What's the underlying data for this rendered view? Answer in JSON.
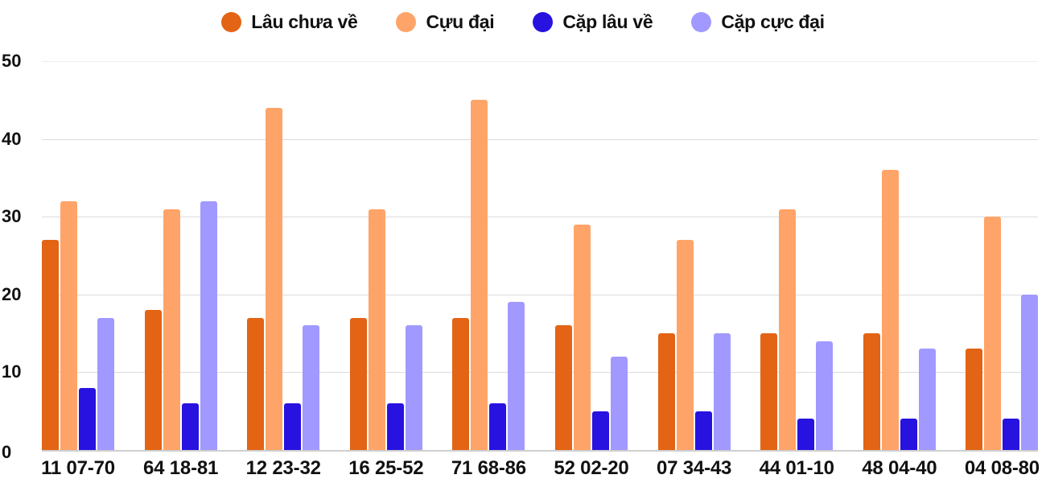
{
  "legend": [
    {
      "label": "Lâu chưa về",
      "color": "#E26414"
    },
    {
      "label": "Cựu đại",
      "color": "#FFA468"
    },
    {
      "label": "Cặp lâu về",
      "color": "#2712E0"
    },
    {
      "label": "Cặp cực đại",
      "color": "#A199FF"
    }
  ],
  "y_axis": {
    "ticks": [
      "0",
      "10",
      "20",
      "30",
      "40",
      "50"
    ]
  },
  "x_axis": {
    "ticks": [
      "11 07-70",
      "64 18-81",
      "12 23-32",
      "16 25-52",
      "71 68-86",
      "52 02-20",
      "07 34-43",
      "44 01-10",
      "48 04-40",
      "04 08-80"
    ]
  },
  "chart_data": {
    "type": "bar",
    "title": "",
    "xlabel": "",
    "ylabel": "",
    "ylim": [
      0,
      50
    ],
    "grid": true,
    "legend_position": "top",
    "categories": [
      "11 07-70",
      "64 18-81",
      "12 23-32",
      "16 25-52",
      "71 68-86",
      "52 02-20",
      "07 34-43",
      "44 01-10",
      "48 04-40",
      "04 08-80"
    ],
    "series": [
      {
        "name": "Lâu chưa về",
        "color": "#E26414",
        "values": [
          27,
          18,
          17,
          17,
          17,
          16,
          15,
          15,
          15,
          13
        ]
      },
      {
        "name": "Cựu đại",
        "color": "#FFA468",
        "values": [
          32,
          31,
          44,
          31,
          45,
          29,
          27,
          31,
          36,
          30
        ]
      },
      {
        "name": "Cặp lâu về",
        "color": "#2712E0",
        "values": [
          8,
          6,
          6,
          6,
          6,
          5,
          5,
          4,
          4,
          4
        ]
      },
      {
        "name": "Cặp cực đại",
        "color": "#A199FF",
        "values": [
          17,
          32,
          16,
          16,
          19,
          12,
          15,
          14,
          13,
          20
        ]
      }
    ]
  }
}
